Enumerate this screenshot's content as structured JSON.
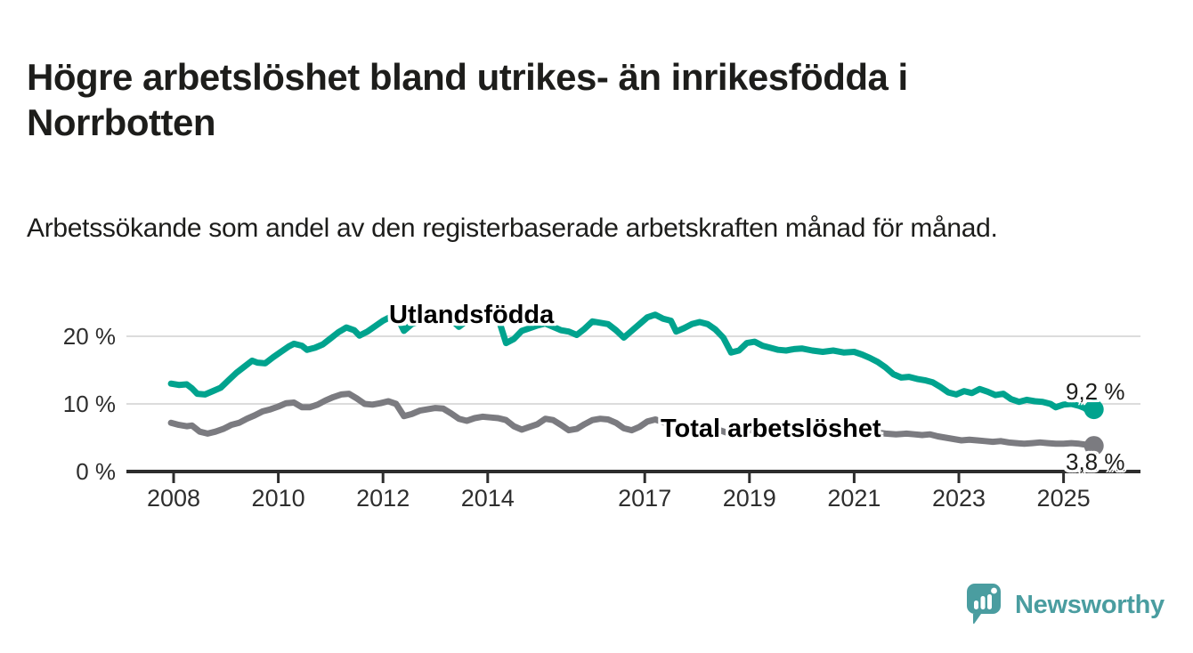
{
  "header": {
    "title": "Högre arbetslöshet bland utrikes- än inrikesfödda i Norrbotten",
    "subtitle": "Arbetssökande som andel av den registerbaserade arbetskraften månad för månad."
  },
  "footer": {
    "brand": "Newsworthy",
    "logo_icon": "speech-bubble-bar-chart"
  },
  "colors": {
    "series_foreign_born": "#00a38e",
    "series_total": "#7b7b80",
    "axis": "#2d2d2d",
    "gridline": "#dcdcdc",
    "text": "#1d1d1b",
    "brand_teal": "#4a9da0"
  },
  "chart_data": {
    "type": "line",
    "title": "Högre arbetslöshet bland utrikes- än inrikesfödda i Norrbotten",
    "subtitle": "Arbetssökande som andel av den registerbaserade arbetskraften månad för månad.",
    "unit": "%",
    "xlabel": "",
    "ylabel": "",
    "xlim": [
      2007.8,
      2026.4
    ],
    "ylim": [
      0,
      26
    ],
    "grid": "horizontal",
    "legend_position": "inline-labels",
    "x_ticks": [
      {
        "value": 2008,
        "label": "2008"
      },
      {
        "value": 2010,
        "label": "2010"
      },
      {
        "value": 2012,
        "label": "2012"
      },
      {
        "value": 2014,
        "label": "2014"
      },
      {
        "value": 2017,
        "label": "2017"
      },
      {
        "value": 2019,
        "label": "2019"
      },
      {
        "value": 2021,
        "label": "2021"
      },
      {
        "value": 2023,
        "label": "2023"
      },
      {
        "value": 2025,
        "label": "2025"
      }
    ],
    "y_ticks": [
      {
        "value": 0,
        "label": "0 %"
      },
      {
        "value": 10,
        "label": "10 %"
      },
      {
        "value": 20,
        "label": "20 %"
      }
    ],
    "series": [
      {
        "name": "Utlandsfödda",
        "color": "#00a38e",
        "end_label": "9,2 %",
        "end_value": 9.2,
        "points": [
          [
            2007.95,
            13.0
          ],
          [
            2008.1,
            12.8
          ],
          [
            2008.25,
            12.9
          ],
          [
            2008.35,
            12.3
          ],
          [
            2008.45,
            11.5
          ],
          [
            2008.6,
            11.4
          ],
          [
            2008.75,
            11.9
          ],
          [
            2008.9,
            12.4
          ],
          [
            2009.05,
            13.5
          ],
          [
            2009.2,
            14.6
          ],
          [
            2009.35,
            15.5
          ],
          [
            2009.5,
            16.4
          ],
          [
            2009.6,
            16.1
          ],
          [
            2009.75,
            16.0
          ],
          [
            2009.9,
            16.9
          ],
          [
            2010.05,
            17.7
          ],
          [
            2010.2,
            18.5
          ],
          [
            2010.3,
            18.9
          ],
          [
            2010.45,
            18.6
          ],
          [
            2010.55,
            18.0
          ],
          [
            2010.7,
            18.3
          ],
          [
            2010.85,
            18.8
          ],
          [
            2011.0,
            19.7
          ],
          [
            2011.15,
            20.6
          ],
          [
            2011.3,
            21.3
          ],
          [
            2011.45,
            20.9
          ],
          [
            2011.55,
            20.1
          ],
          [
            2011.7,
            20.7
          ],
          [
            2011.85,
            21.5
          ],
          [
            2012.0,
            22.3
          ],
          [
            2012.15,
            22.9
          ],
          [
            2012.3,
            22.4
          ],
          [
            2012.4,
            20.8
          ],
          [
            2012.55,
            21.8
          ],
          [
            2012.7,
            22.2
          ],
          [
            2012.85,
            22.5
          ],
          [
            2013.0,
            23.1
          ],
          [
            2013.15,
            23.3
          ],
          [
            2013.3,
            22.5
          ],
          [
            2013.45,
            21.4
          ],
          [
            2013.6,
            22.3
          ],
          [
            2013.75,
            22.7
          ],
          [
            2013.9,
            22.9
          ],
          [
            2014.05,
            23.2
          ],
          [
            2014.2,
            22.7
          ],
          [
            2014.35,
            19.0
          ],
          [
            2014.5,
            19.6
          ],
          [
            2014.65,
            20.8
          ],
          [
            2014.8,
            21.2
          ],
          [
            2014.95,
            21.6
          ],
          [
            2015.1,
            21.9
          ],
          [
            2015.25,
            21.4
          ],
          [
            2015.4,
            20.9
          ],
          [
            2015.55,
            20.7
          ],
          [
            2015.7,
            20.2
          ],
          [
            2015.85,
            21.1
          ],
          [
            2016.0,
            22.2
          ],
          [
            2016.15,
            22.0
          ],
          [
            2016.3,
            21.8
          ],
          [
            2016.45,
            20.9
          ],
          [
            2016.6,
            19.8
          ],
          [
            2016.75,
            20.8
          ],
          [
            2016.9,
            21.8
          ],
          [
            2017.05,
            22.8
          ],
          [
            2017.2,
            23.2
          ],
          [
            2017.35,
            22.6
          ],
          [
            2017.5,
            22.3
          ],
          [
            2017.6,
            20.7
          ],
          [
            2017.75,
            21.2
          ],
          [
            2017.9,
            21.8
          ],
          [
            2018.05,
            22.1
          ],
          [
            2018.2,
            21.8
          ],
          [
            2018.35,
            21.0
          ],
          [
            2018.5,
            19.8
          ],
          [
            2018.65,
            17.6
          ],
          [
            2018.8,
            17.9
          ],
          [
            2018.95,
            19.0
          ],
          [
            2019.1,
            19.2
          ],
          [
            2019.25,
            18.6
          ],
          [
            2019.4,
            18.3
          ],
          [
            2019.55,
            18.0
          ],
          [
            2019.7,
            17.9
          ],
          [
            2019.85,
            18.1
          ],
          [
            2020.0,
            18.2
          ],
          [
            2020.2,
            17.9
          ],
          [
            2020.4,
            17.7
          ],
          [
            2020.6,
            17.9
          ],
          [
            2020.8,
            17.6
          ],
          [
            2021.0,
            17.7
          ],
          [
            2021.15,
            17.3
          ],
          [
            2021.3,
            16.8
          ],
          [
            2021.45,
            16.2
          ],
          [
            2021.6,
            15.4
          ],
          [
            2021.75,
            14.4
          ],
          [
            2021.9,
            13.9
          ],
          [
            2022.05,
            14.0
          ],
          [
            2022.2,
            13.7
          ],
          [
            2022.35,
            13.5
          ],
          [
            2022.5,
            13.2
          ],
          [
            2022.65,
            12.5
          ],
          [
            2022.8,
            11.7
          ],
          [
            2022.95,
            11.4
          ],
          [
            2023.1,
            11.9
          ],
          [
            2023.25,
            11.6
          ],
          [
            2023.4,
            12.2
          ],
          [
            2023.55,
            11.8
          ],
          [
            2023.7,
            11.3
          ],
          [
            2023.85,
            11.5
          ],
          [
            2024.0,
            10.7
          ],
          [
            2024.15,
            10.3
          ],
          [
            2024.3,
            10.6
          ],
          [
            2024.45,
            10.4
          ],
          [
            2024.6,
            10.3
          ],
          [
            2024.75,
            10.0
          ],
          [
            2024.85,
            9.5
          ],
          [
            2025.0,
            9.9
          ],
          [
            2025.15,
            10.0
          ],
          [
            2025.3,
            9.7
          ],
          [
            2025.4,
            9.4
          ],
          [
            2025.5,
            8.8
          ],
          [
            2025.58,
            9.2
          ]
        ]
      },
      {
        "name": "Total arbetslöshet",
        "color": "#7b7b80",
        "end_label": "3,8 %",
        "end_value": 3.8,
        "points": [
          [
            2007.95,
            7.2
          ],
          [
            2008.1,
            6.9
          ],
          [
            2008.25,
            6.7
          ],
          [
            2008.35,
            6.8
          ],
          [
            2008.5,
            5.9
          ],
          [
            2008.65,
            5.6
          ],
          [
            2008.8,
            5.9
          ],
          [
            2008.95,
            6.3
          ],
          [
            2009.1,
            6.9
          ],
          [
            2009.25,
            7.2
          ],
          [
            2009.4,
            7.8
          ],
          [
            2009.55,
            8.3
          ],
          [
            2009.7,
            8.9
          ],
          [
            2009.85,
            9.2
          ],
          [
            2010.0,
            9.6
          ],
          [
            2010.15,
            10.1
          ],
          [
            2010.3,
            10.2
          ],
          [
            2010.45,
            9.5
          ],
          [
            2010.6,
            9.5
          ],
          [
            2010.75,
            9.9
          ],
          [
            2010.9,
            10.5
          ],
          [
            2011.05,
            11.0
          ],
          [
            2011.2,
            11.4
          ],
          [
            2011.35,
            11.5
          ],
          [
            2011.5,
            10.8
          ],
          [
            2011.65,
            10.0
          ],
          [
            2011.8,
            9.9
          ],
          [
            2011.95,
            10.1
          ],
          [
            2012.1,
            10.4
          ],
          [
            2012.25,
            10.0
          ],
          [
            2012.4,
            8.2
          ],
          [
            2012.55,
            8.5
          ],
          [
            2012.7,
            9.0
          ],
          [
            2012.85,
            9.2
          ],
          [
            2013.0,
            9.4
          ],
          [
            2013.15,
            9.3
          ],
          [
            2013.3,
            8.6
          ],
          [
            2013.45,
            7.8
          ],
          [
            2013.6,
            7.5
          ],
          [
            2013.75,
            7.9
          ],
          [
            2013.9,
            8.1
          ],
          [
            2014.05,
            8.0
          ],
          [
            2014.2,
            7.9
          ],
          [
            2014.35,
            7.6
          ],
          [
            2014.5,
            6.7
          ],
          [
            2014.65,
            6.2
          ],
          [
            2014.8,
            6.6
          ],
          [
            2014.95,
            7.0
          ],
          [
            2015.1,
            7.8
          ],
          [
            2015.25,
            7.6
          ],
          [
            2015.4,
            6.9
          ],
          [
            2015.55,
            6.1
          ],
          [
            2015.7,
            6.3
          ],
          [
            2015.85,
            7.0
          ],
          [
            2016.0,
            7.6
          ],
          [
            2016.15,
            7.8
          ],
          [
            2016.3,
            7.7
          ],
          [
            2016.45,
            7.2
          ],
          [
            2016.6,
            6.4
          ],
          [
            2016.75,
            6.1
          ],
          [
            2016.9,
            6.6
          ],
          [
            2017.05,
            7.4
          ],
          [
            2017.2,
            7.7
          ],
          [
            2017.35,
            7.3
          ],
          [
            2017.5,
            6.9
          ],
          [
            2017.65,
            6.6
          ],
          [
            2017.8,
            6.7
          ],
          [
            2017.95,
            6.9
          ],
          [
            2018.1,
            7.0
          ],
          [
            2018.25,
            6.7
          ],
          [
            2018.4,
            6.2
          ],
          [
            2018.55,
            5.8
          ],
          [
            2018.7,
            5.6
          ],
          [
            2018.85,
            5.8
          ],
          [
            2019.0,
            6.1
          ],
          [
            2019.2,
            6.2
          ],
          [
            2019.4,
            5.9
          ],
          [
            2019.6,
            5.7
          ],
          [
            2019.8,
            5.8
          ],
          [
            2020.0,
            6.1
          ],
          [
            2020.2,
            6.6
          ],
          [
            2020.4,
            6.9
          ],
          [
            2020.6,
            6.8
          ],
          [
            2020.8,
            6.5
          ],
          [
            2021.0,
            6.3
          ],
          [
            2021.2,
            6.0
          ],
          [
            2021.4,
            5.8
          ],
          [
            2021.6,
            5.6
          ],
          [
            2021.8,
            5.5
          ],
          [
            2022.0,
            5.6
          ],
          [
            2022.15,
            5.5
          ],
          [
            2022.3,
            5.4
          ],
          [
            2022.45,
            5.5
          ],
          [
            2022.6,
            5.2
          ],
          [
            2022.75,
            5.0
          ],
          [
            2022.9,
            4.8
          ],
          [
            2023.05,
            4.6
          ],
          [
            2023.2,
            4.7
          ],
          [
            2023.35,
            4.6
          ],
          [
            2023.5,
            4.5
          ],
          [
            2023.65,
            4.4
          ],
          [
            2023.8,
            4.5
          ],
          [
            2023.95,
            4.3
          ],
          [
            2024.1,
            4.2
          ],
          [
            2024.25,
            4.1
          ],
          [
            2024.4,
            4.2
          ],
          [
            2024.55,
            4.3
          ],
          [
            2024.7,
            4.2
          ],
          [
            2024.85,
            4.1
          ],
          [
            2025.0,
            4.1
          ],
          [
            2025.15,
            4.2
          ],
          [
            2025.3,
            4.1
          ],
          [
            2025.4,
            4.0
          ],
          [
            2025.5,
            3.9
          ],
          [
            2025.58,
            3.8
          ]
        ]
      }
    ]
  }
}
